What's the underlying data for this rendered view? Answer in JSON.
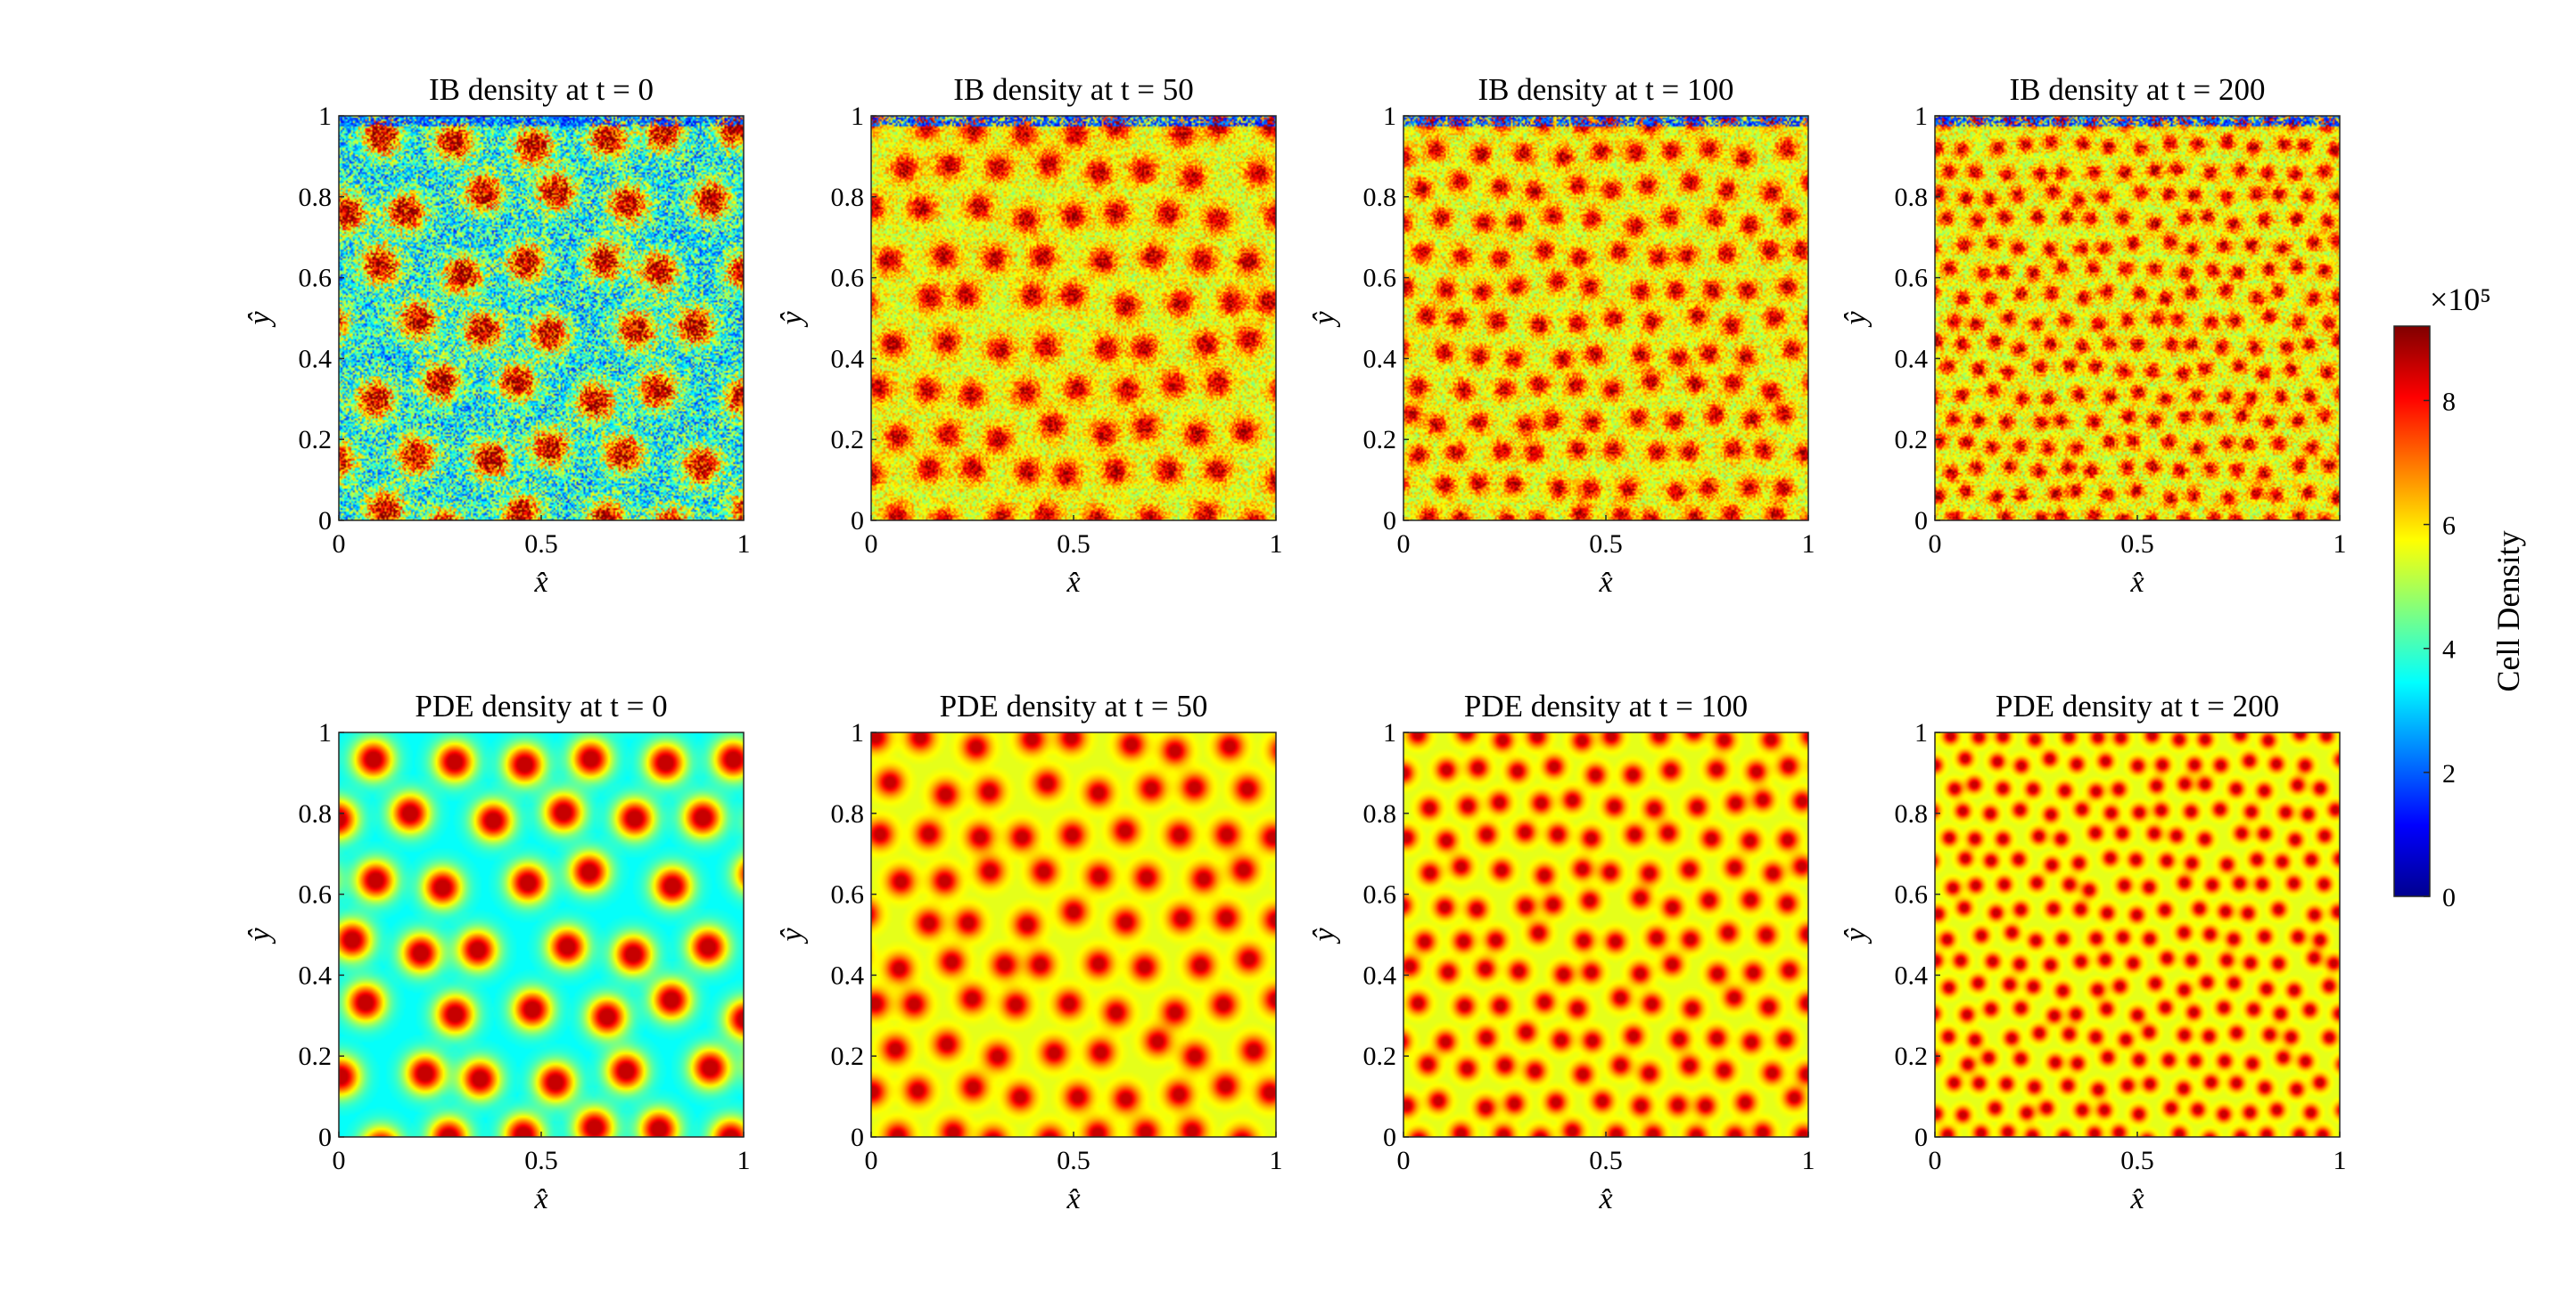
{
  "chart_data": {
    "type": "heatmap",
    "colormap": "jet",
    "shared_axes": {
      "xlabel": "x̂",
      "ylabel": "ŷ",
      "xlim": [
        0,
        1
      ],
      "ylim": [
        0,
        1
      ],
      "xticks": [
        "0",
        "0.5",
        "1"
      ],
      "yticks": [
        "0",
        "0.2",
        "0.4",
        "0.6",
        "0.8",
        "1"
      ]
    },
    "panels": [
      {
        "title": "IB density at t = 0",
        "model": "IB",
        "t": 0,
        "pattern_spots_per_side": 5.5,
        "noisy": true
      },
      {
        "title": "IB density at t = 50",
        "model": "IB",
        "t": 50,
        "pattern_spots_per_side": 8,
        "noisy": true
      },
      {
        "title": "IB density at t = 100",
        "model": "IB",
        "t": 100,
        "pattern_spots_per_side": 10.5,
        "noisy": true
      },
      {
        "title": "IB density at t = 200",
        "model": "IB",
        "t": 200,
        "pattern_spots_per_side": 14,
        "noisy": true
      },
      {
        "title": "PDE density at t = 0",
        "model": "PDE",
        "t": 0,
        "pattern_spots_per_side": 5.5,
        "noisy": false
      },
      {
        "title": "PDE density at t = 50",
        "model": "PDE",
        "t": 50,
        "pattern_spots_per_side": 8,
        "noisy": false
      },
      {
        "title": "PDE density at t = 100",
        "model": "PDE",
        "t": 100,
        "pattern_spots_per_side": 10.5,
        "noisy": false
      },
      {
        "title": "PDE density at t = 200",
        "model": "PDE",
        "t": 200,
        "pattern_spots_per_side": 14,
        "noisy": false
      }
    ],
    "colorbar": {
      "label": "Cell Density",
      "exponent": "×10⁵",
      "range": [
        0,
        9.2
      ],
      "ticks": [
        "0",
        "2",
        "4",
        "6",
        "8"
      ],
      "tick_values": [
        0,
        2,
        4,
        6,
        8
      ]
    }
  }
}
